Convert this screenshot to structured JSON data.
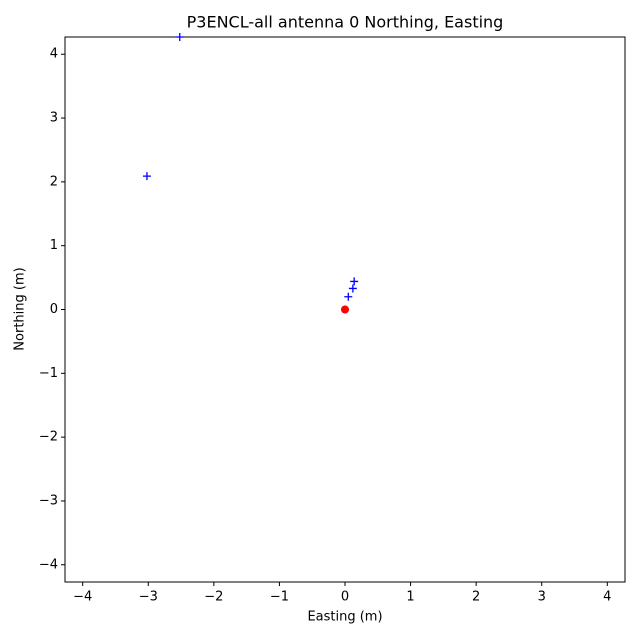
{
  "chart_data": {
    "type": "scatter",
    "title": "P3ENCL-all antenna 0 Northing, Easting",
    "xlabel": "Easting (m)",
    "ylabel": "Northing (m)",
    "xlim": [
      -4.27,
      4.27
    ],
    "ylim": [
      -4.27,
      4.27
    ],
    "xticks": [
      {
        "value": -4,
        "label": "−4"
      },
      {
        "value": -3,
        "label": "−3"
      },
      {
        "value": -2,
        "label": "−2"
      },
      {
        "value": -1,
        "label": "−1"
      },
      0,
      1,
      2,
      3,
      4
    ],
    "yticks": [
      {
        "value": -4,
        "label": "−4"
      },
      {
        "value": -3,
        "label": "−3"
      },
      {
        "value": -2,
        "label": "−2"
      },
      {
        "value": -1,
        "label": "−1"
      },
      0,
      1,
      2,
      3,
      4
    ],
    "series": [
      {
        "color": "#0000ff",
        "marker": "plus",
        "x": [
          -2.52,
          -3.02,
          0.14,
          0.12,
          0.05,
          0.0
        ],
        "values": [
          4.27,
          2.09,
          0.44,
          0.33,
          0.2,
          0.0
        ]
      },
      {
        "color": "#ff0000",
        "marker": "circle",
        "x": [
          0.0
        ],
        "values": [
          0.0
        ]
      }
    ]
  }
}
